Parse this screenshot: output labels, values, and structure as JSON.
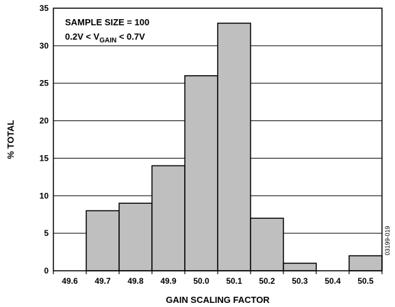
{
  "chart_data": {
    "type": "bar",
    "categories": [
      "49.6",
      "49.7",
      "49.8",
      "49.9",
      "50.0",
      "50.1",
      "50.2",
      "50.3",
      "50.4",
      "50.5"
    ],
    "values": [
      0,
      8,
      9,
      14,
      26,
      33,
      7,
      1,
      0,
      2
    ],
    "xlabel": "GAIN SCALING FACTOR",
    "ylabel": "% TOTAL",
    "ylim": [
      0,
      35
    ],
    "yticks": [
      0,
      5,
      10,
      15,
      20,
      25,
      30,
      35
    ],
    "grid": "horizontal",
    "bar_color": "#bfbfbf",
    "annotations": {
      "line1": "SAMPLE SIZE = 100",
      "line2_pre": "0.2V < V",
      "line2_sub": "GAIN",
      "line2_post": " < 0.7V"
    },
    "figure_id": "03199-019"
  }
}
